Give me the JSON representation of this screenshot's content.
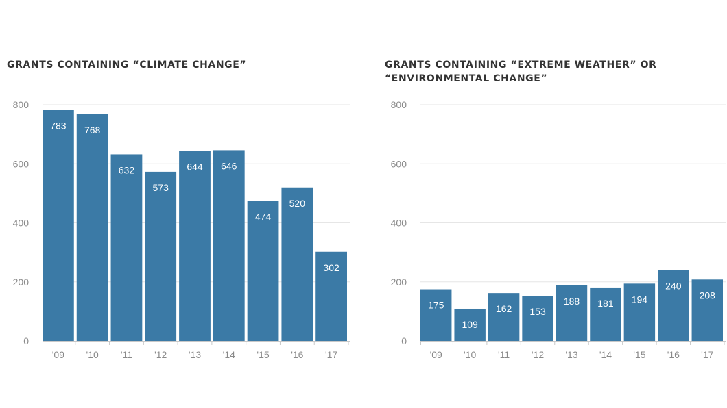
{
  "colors": {
    "bar": "#3b7aa6",
    "grid": "#e6e6e6",
    "axis": "#c8c8c8"
  },
  "chart_data": [
    {
      "type": "bar",
      "title": "GRANTS CONTAINING “CLIMATE CHANGE”",
      "categories": [
        "'09",
        "'10",
        "'11",
        "'12",
        "'13",
        "'14",
        "'15",
        "'16",
        "'17"
      ],
      "values": [
        783,
        768,
        632,
        573,
        644,
        646,
        474,
        520,
        302
      ],
      "yticks": [
        0,
        200,
        400,
        600,
        800
      ],
      "ylim": [
        0,
        800
      ],
      "grid": true
    },
    {
      "type": "bar",
      "title_lines": [
        "GRANTS CONTAINING “EXTREME WEATHER” OR",
        "“ENVIRONMENTAL CHANGE”"
      ],
      "categories": [
        "'09",
        "'10",
        "'11",
        "'12",
        "'13",
        "'14",
        "'15",
        "'16",
        "'17"
      ],
      "values": [
        175,
        109,
        162,
        153,
        188,
        181,
        194,
        240,
        208
      ],
      "yticks": [
        0,
        200,
        400,
        600,
        800
      ],
      "ylim": [
        0,
        800
      ],
      "grid": true
    }
  ]
}
